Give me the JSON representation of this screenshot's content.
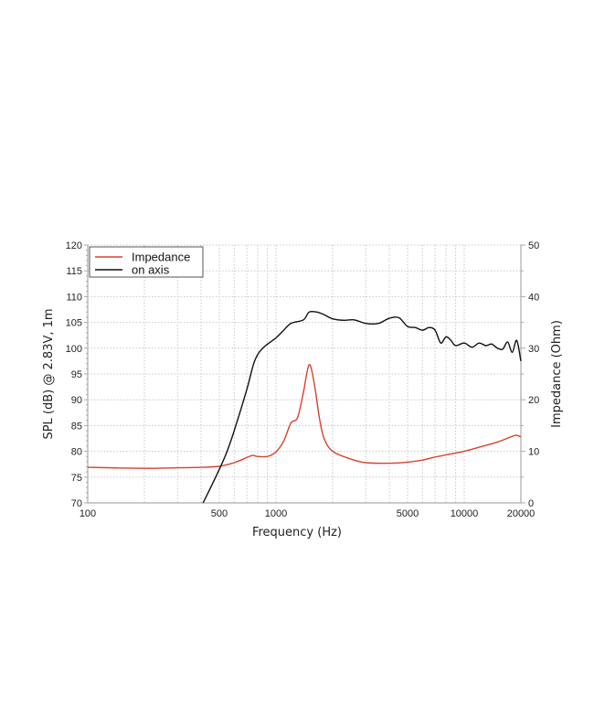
{
  "chart_data": {
    "type": "line",
    "title": "",
    "xlabel": "Frequency (Hz)",
    "ylabel": "SPL (dB) @ 2.83V, 1m",
    "ylabel_right": "Impedance (Ohm)",
    "xscale": "log",
    "xlim": [
      100,
      20000
    ],
    "ylim": [
      70,
      120
    ],
    "ylim_right": [
      0,
      50
    ],
    "grid": true,
    "legend_position": "upper left",
    "x_ticks": [
      100,
      500,
      1000,
      5000,
      10000,
      20000
    ],
    "x_tick_labels": [
      "100",
      "500",
      "1000",
      "5000",
      "10000",
      "20000"
    ],
    "y_ticks": [
      70,
      75,
      80,
      85,
      90,
      95,
      100,
      105,
      110,
      115,
      120
    ],
    "y_ticks_right": [
      0,
      10,
      20,
      30,
      40,
      50
    ],
    "series": [
      {
        "name": "Impedance",
        "axis": "right",
        "color": "#d9412e",
        "x": [
          100,
          200,
          300,
          400,
          500,
          600,
          700,
          750,
          800,
          900,
          1000,
          1100,
          1200,
          1300,
          1400,
          1500,
          1600,
          1700,
          1800,
          2000,
          2500,
          3000,
          4000,
          5000,
          6000,
          7000,
          8000,
          10000,
          12000,
          15000,
          18000,
          19000,
          20000
        ],
        "values": [
          6.9,
          6.7,
          6.8,
          6.9,
          7.1,
          7.8,
          8.8,
          9.2,
          9.0,
          9.0,
          9.9,
          12.0,
          15.5,
          16.5,
          21.5,
          26.8,
          23.0,
          16.5,
          12.5,
          10.0,
          8.5,
          7.8,
          7.7,
          7.9,
          8.3,
          8.9,
          9.3,
          10.0,
          10.8,
          11.8,
          12.9,
          13.1,
          12.8
        ]
      },
      {
        "name": "on axis",
        "axis": "left",
        "color": "#111111",
        "x": [
          410,
          450,
          500,
          550,
          600,
          700,
          770,
          850,
          1000,
          1100,
          1200,
          1400,
          1500,
          1650,
          1800,
          2000,
          2300,
          2600,
          3000,
          3500,
          4000,
          4500,
          5000,
          5500,
          6000,
          6500,
          7000,
          7500,
          8000,
          8500,
          9000,
          10000,
          11000,
          12000,
          13000,
          14000,
          15000,
          16000,
          17000,
          18000,
          19000,
          20000
        ],
        "values": [
          70,
          73,
          76.5,
          80,
          84,
          92,
          97.5,
          100,
          102,
          103.5,
          104.8,
          105.5,
          107,
          107,
          106.5,
          105.7,
          105.4,
          105.5,
          104.8,
          104.8,
          105.8,
          105.9,
          104.2,
          104.0,
          103.5,
          104.0,
          103.5,
          101.0,
          102.2,
          101.5,
          100.5,
          101.0,
          100.2,
          101.0,
          100.5,
          100.8,
          100.0,
          99.8,
          101.2,
          99.2,
          101.5,
          97.5
        ]
      }
    ]
  },
  "legend": {
    "items": [
      {
        "label": "Impedance",
        "color": "#d9412e"
      },
      {
        "label": "on axis",
        "color": "#111111"
      }
    ]
  },
  "axes": {
    "x_label": "Frequency (Hz)",
    "y_left_label": "SPL (dB) @ 2.83V, 1m",
    "y_right_label": "Impedance (Ohm)"
  }
}
